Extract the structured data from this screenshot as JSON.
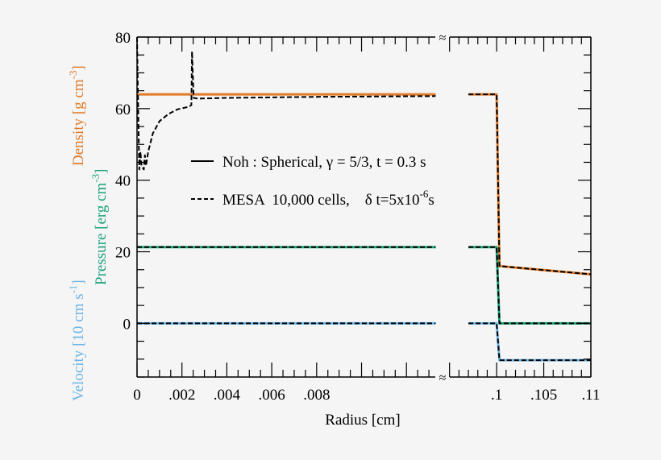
{
  "chart_data": {
    "type": "line",
    "xlabel": "Radius [cm]",
    "ylabels": [
      {
        "text": "Density [g cm",
        "sup": "-3",
        "close": "]",
        "color": "#e07b2a"
      },
      {
        "text": "Pressure [erg cm",
        "sup": "-3",
        "close": "]",
        "color": "#1aa37a"
      },
      {
        "text": "Velocity [10 cm s",
        "sup": "-1",
        "close": "]",
        "color": "#6cb6e6"
      }
    ],
    "ylim": [
      -15,
      80
    ],
    "yticks": [
      "0",
      "20",
      "40",
      "60",
      "80"
    ],
    "x_broken_axis": true,
    "x_segments": [
      {
        "xlim": [
          0,
          0.0135
        ],
        "ticks": [
          "0",
          ".002",
          ".004",
          ".006",
          ".008"
        ]
      },
      {
        "xlim": [
          0.094,
          0.11
        ],
        "ticks": [
          ".1",
          ".105",
          ".11"
        ]
      }
    ],
    "break_symbol": "≈",
    "legend": {
      "placement": "center",
      "entries": [
        {
          "style": "solid",
          "label": "Noh : Spherical, γ = 5/3, t = 0.3 s"
        },
        {
          "style": "dashed",
          "label": "MESA  10,000 cells,    δ t=5x10",
          "sup": "-6",
          "tail": "s"
        }
      ]
    },
    "series": [
      {
        "quantity": "density",
        "style": "solid",
        "color": "#e07b2a",
        "x": [
          0,
          0.0133,
          0.097,
          0.1,
          0.1003,
          0.11
        ],
        "y": [
          64,
          64,
          64,
          64,
          16,
          13.7
        ]
      },
      {
        "quantity": "pressure",
        "style": "solid",
        "color": "#1aa37a",
        "x": [
          0,
          0.0133,
          0.097,
          0.1,
          0.1003,
          0.11
        ],
        "y": [
          21.3,
          21.3,
          21.3,
          21.3,
          0,
          0
        ]
      },
      {
        "quantity": "velocity",
        "style": "solid",
        "color": "#6cb6e6",
        "x": [
          0,
          0.0133,
          0.097,
          0.1,
          0.1003,
          0.11
        ],
        "y": [
          0,
          0,
          0,
          0,
          -10.3,
          -10.3
        ]
      },
      {
        "quantity": "density",
        "style": "dashed",
        "color": "#000000",
        "x": [
          0,
          5e-05,
          0.0001,
          0.00015,
          0.0002,
          0.0003,
          0.00035,
          0.0004,
          0.0005,
          0.0007,
          0.001,
          0.0014,
          0.0018,
          0.0023,
          0.00242,
          0.00245,
          0.00252,
          0.0027,
          0.004,
          0.008,
          0.0133,
          0.097,
          0.1,
          0.1003,
          0.11
        ],
        "y": [
          80,
          60,
          43,
          48,
          44,
          43,
          47,
          44,
          48,
          53,
          56.5,
          58.5,
          59.8,
          60.5,
          61,
          76,
          63,
          62.8,
          63,
          63.3,
          63.5,
          64,
          64,
          16,
          13.7
        ]
      },
      {
        "quantity": "pressure",
        "style": "dashed",
        "color": "#000000",
        "x": [
          0,
          0.0133,
          0.097,
          0.1,
          0.1003,
          0.11
        ],
        "y": [
          21.3,
          21.3,
          21.3,
          21.3,
          0,
          0
        ]
      },
      {
        "quantity": "velocity",
        "style": "dashed",
        "color": "#000000",
        "x": [
          0,
          0.0133,
          0.097,
          0.1,
          0.1003,
          0.11
        ],
        "y": [
          0,
          0,
          0,
          0,
          -10.3,
          -10.3
        ]
      }
    ]
  }
}
